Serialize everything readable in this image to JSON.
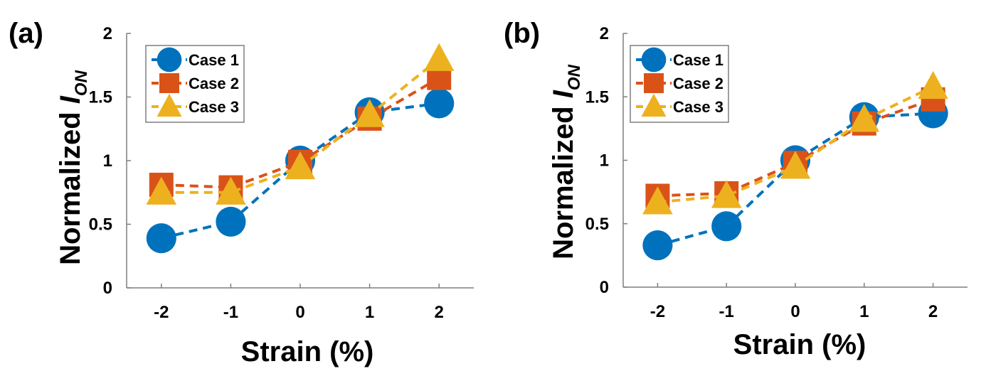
{
  "chart_data": [
    {
      "type": "line",
      "panel_label": "(a)",
      "xlabel": "Strain (%)",
      "ylabel": "Normalized I",
      "ylabel_subscript": "ON",
      "x": [
        -2,
        -1,
        0,
        1,
        2
      ],
      "x_tick_labels": [
        "-2",
        "-1",
        "0",
        "1",
        "2"
      ],
      "y_tick_labels": [
        "0",
        "0.5",
        "1",
        "1.5",
        "2"
      ],
      "y_ticks": [
        0,
        0.5,
        1,
        1.5,
        2
      ],
      "xlim": [
        -2.5,
        2.5
      ],
      "ylim": [
        0,
        2
      ],
      "grid": false,
      "legend_position": "top-left",
      "series": [
        {
          "name": "Case 1",
          "marker": "circle",
          "color": "#0072BD",
          "values": [
            0.39,
            0.52,
            1.0,
            1.38,
            1.45
          ]
        },
        {
          "name": "Case 2",
          "marker": "square",
          "color": "#D95319",
          "values": [
            0.81,
            0.79,
            0.99,
            1.33,
            1.65
          ]
        },
        {
          "name": "Case 3",
          "marker": "triangle",
          "color": "#EDB120",
          "values": [
            0.75,
            0.75,
            0.95,
            1.36,
            1.8
          ]
        }
      ]
    },
    {
      "type": "line",
      "panel_label": "(b)",
      "xlabel": "Strain (%)",
      "ylabel": "Normalized I",
      "ylabel_subscript": "ON",
      "x": [
        -2,
        -1,
        0,
        1,
        2
      ],
      "x_tick_labels": [
        "-2",
        "-1",
        "0",
        "1",
        "2"
      ],
      "y_tick_labels": [
        "0",
        "0.5",
        "1",
        "1.5",
        "2"
      ],
      "y_ticks": [
        0,
        0.5,
        1,
        1.5,
        2
      ],
      "xlim": [
        -2.5,
        2.5
      ],
      "ylim": [
        0,
        2
      ],
      "grid": false,
      "legend_position": "top-left",
      "series": [
        {
          "name": "Case 1",
          "marker": "circle",
          "color": "#0072BD",
          "values": [
            0.33,
            0.48,
            1.0,
            1.34,
            1.37
          ]
        },
        {
          "name": "Case 2",
          "marker": "square",
          "color": "#D95319",
          "values": [
            0.72,
            0.74,
            0.98,
            1.29,
            1.48
          ]
        },
        {
          "name": "Case 3",
          "marker": "triangle",
          "color": "#EDB120",
          "values": [
            0.67,
            0.72,
            0.95,
            1.32,
            1.58
          ]
        }
      ]
    }
  ]
}
